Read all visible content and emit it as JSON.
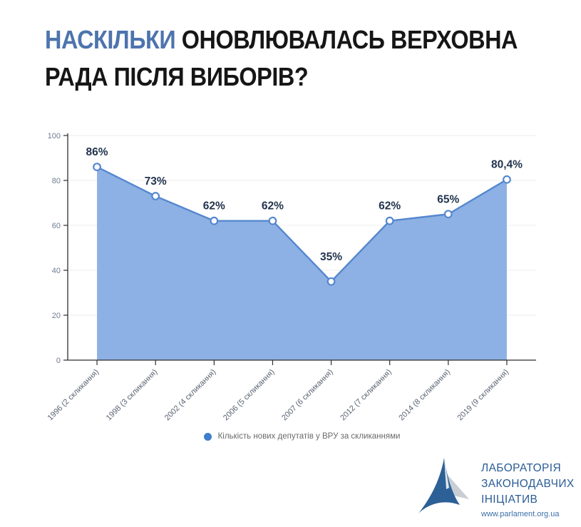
{
  "title": {
    "highlight": "НАСКІЛЬКИ",
    "rest": "ОНОВЛЮВАЛАСЬ ВЕРХОВНА",
    "line2": "РАДА ПІСЛЯ ВИБОРІВ?",
    "highlight_color": "#4d74ad",
    "text_color": "#161616"
  },
  "chart_data": {
    "type": "area",
    "categories": [
      "1996 (2 скликання)",
      "1998 (3 скликання)",
      "2002 (4 скликання)",
      "2006 (5 скликання)",
      "2007 (6 скликання)",
      "2012 (7 скликання)",
      "2014 (8 скликання)",
      "2019 (9 скликання)"
    ],
    "values": [
      86,
      73,
      62,
      62,
      35,
      62,
      65,
      80.4
    ],
    "point_labels": [
      "86%",
      "73%",
      "62%",
      "62%",
      "35%",
      "62%",
      "65%",
      "80,4%"
    ],
    "title": "",
    "xlabel": "",
    "ylabel": "",
    "ylim": [
      0,
      100
    ],
    "yticks": [
      0,
      20,
      40,
      60,
      80,
      100
    ],
    "grid": "horizontal",
    "legend": {
      "label": "Кількість нових депутатів у ВРУ за скликаннями",
      "position": "bottom-center",
      "dot_color": "#3f7ecd"
    },
    "colors": {
      "area_fill": "#8db1e4",
      "line": "#5587cf",
      "point_fill": "#ffffff",
      "point_stroke": "#5587cf",
      "value_label": "#22344e",
      "axis": "#2f2f2f",
      "grid": "#ececec",
      "y_tick_label": "#6e7d92",
      "x_tick_label": "#5a6472"
    }
  },
  "logo": {
    "org_lines": [
      "ЛАБОРАТОРІЯ",
      "ЗАКОНОДАВЧИХ",
      "ІНІЦІАТИВ"
    ],
    "url": "www.parlament.org.ua",
    "text_color": "#2a5c95",
    "url_color": "#3c6fa8",
    "icon_blue": "#2d6096",
    "icon_gray": "#c9ced4"
  }
}
